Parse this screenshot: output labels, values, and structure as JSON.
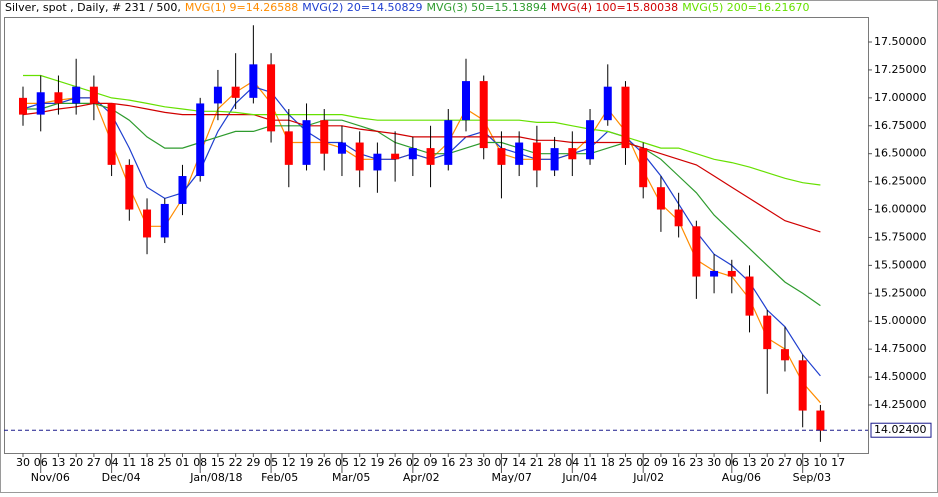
{
  "chart_data": {
    "type": "candlestick",
    "title": "Silver, spot , Daily, # 231 / 500,",
    "categories": [
      "30",
      "06",
      "13",
      "20",
      "27",
      "04",
      "11",
      "18",
      "25",
      "01",
      "08",
      "15",
      "22",
      "29",
      "05",
      "12",
      "19",
      "26",
      "05",
      "12",
      "19",
      "26",
      "02",
      "09",
      "16",
      "23",
      "30",
      "07",
      "14",
      "21",
      "28",
      "04",
      "11",
      "18",
      "25",
      "02",
      "09",
      "16",
      "23",
      "30",
      "06",
      "13",
      "20",
      "27",
      "03",
      "10",
      "17"
    ],
    "month_labels": [
      null,
      "Nov/06",
      null,
      null,
      null,
      "Dec/04",
      null,
      null,
      null,
      null,
      "Jan/08/18",
      null,
      null,
      null,
      "Feb/05",
      null,
      null,
      null,
      "Mar/05",
      null,
      null,
      null,
      "Apr/02",
      null,
      null,
      null,
      null,
      "May/07",
      null,
      null,
      null,
      "Jun/04",
      null,
      null,
      null,
      "Jul/02",
      null,
      null,
      null,
      null,
      "Aug/06",
      null,
      null,
      null,
      "Sep/03",
      null,
      null
    ],
    "open": [
      17.0,
      16.85,
      17.05,
      16.95,
      17.1,
      16.95,
      16.4,
      16.0,
      15.75,
      16.05,
      16.3,
      16.95,
      17.1,
      17.0,
      17.3,
      16.7,
      16.4,
      16.8,
      16.5,
      16.6,
      16.35,
      16.5,
      16.45,
      16.55,
      16.4,
      16.8,
      17.15,
      16.55,
      16.4,
      16.6,
      16.35,
      16.55,
      16.45,
      16.8,
      17.1,
      16.55,
      16.2,
      16.0,
      15.85,
      15.4,
      15.45,
      15.4,
      15.05,
      14.75,
      14.65,
      14.2,
      null
    ],
    "high": [
      17.1,
      17.2,
      17.2,
      17.35,
      17.2,
      16.95,
      16.45,
      16.1,
      16.1,
      16.4,
      17.0,
      17.25,
      17.4,
      17.65,
      17.4,
      16.9,
      16.95,
      16.9,
      16.75,
      16.7,
      16.6,
      16.7,
      16.65,
      16.75,
      16.9,
      17.35,
      17.2,
      16.7,
      16.7,
      16.75,
      16.65,
      16.7,
      16.9,
      17.3,
      17.15,
      16.6,
      16.3,
      16.15,
      15.9,
      15.6,
      15.55,
      15.5,
      15.1,
      14.95,
      14.7,
      14.25,
      null
    ],
    "low": [
      16.75,
      16.7,
      16.85,
      16.85,
      16.8,
      16.3,
      15.9,
      15.6,
      15.7,
      15.95,
      16.25,
      16.8,
      16.9,
      16.95,
      16.6,
      16.2,
      16.35,
      16.35,
      16.3,
      16.2,
      16.15,
      16.25,
      16.3,
      16.2,
      16.35,
      16.7,
      16.45,
      16.1,
      16.3,
      16.2,
      16.3,
      16.3,
      16.4,
      16.75,
      16.4,
      16.1,
      15.8,
      15.75,
      15.2,
      15.25,
      15.25,
      14.9,
      14.35,
      14.55,
      14.05,
      13.92,
      null
    ],
    "close": [
      16.85,
      17.05,
      16.95,
      17.1,
      16.95,
      16.4,
      16.0,
      15.75,
      16.05,
      16.3,
      16.95,
      17.1,
      17.0,
      17.3,
      16.7,
      16.4,
      16.8,
      16.5,
      16.6,
      16.35,
      16.5,
      16.45,
      16.55,
      16.4,
      16.8,
      17.15,
      16.55,
      16.4,
      16.6,
      16.35,
      16.55,
      16.45,
      16.8,
      17.1,
      16.55,
      16.2,
      16.0,
      15.85,
      15.4,
      15.45,
      15.4,
      15.05,
      14.75,
      14.65,
      14.2,
      14.02,
      null
    ],
    "up_color": "#0000ff",
    "down_color": "#ff0000",
    "series": [
      {
        "name": "MVG(1) 9=14.26588",
        "color": "#ff8c00",
        "values": [
          16.95,
          16.95,
          16.98,
          17.0,
          17.0,
          16.6,
          16.2,
          15.85,
          15.85,
          16.1,
          16.5,
          16.9,
          17.05,
          17.15,
          16.95,
          16.6,
          16.6,
          16.6,
          16.55,
          16.45,
          16.45,
          16.45,
          16.5,
          16.45,
          16.6,
          16.9,
          16.8,
          16.5,
          16.45,
          16.45,
          16.45,
          16.5,
          16.65,
          16.9,
          16.7,
          16.35,
          16.05,
          15.9,
          15.55,
          15.45,
          15.4,
          15.2,
          14.85,
          14.75,
          14.45,
          14.27,
          null
        ]
      },
      {
        "name": "MVG(2) 20=14.50829",
        "color": "#1f3fcf",
        "values": [
          16.9,
          16.95,
          16.95,
          17.0,
          17.0,
          16.85,
          16.55,
          16.2,
          16.1,
          16.15,
          16.35,
          16.7,
          16.95,
          17.1,
          17.05,
          16.85,
          16.7,
          16.6,
          16.6,
          16.5,
          16.45,
          16.45,
          16.5,
          16.45,
          16.5,
          16.65,
          16.7,
          16.55,
          16.5,
          16.45,
          16.45,
          16.5,
          16.55,
          16.7,
          16.65,
          16.5,
          16.3,
          16.05,
          15.8,
          15.6,
          15.5,
          15.35,
          15.1,
          14.95,
          14.7,
          14.51,
          null
        ]
      },
      {
        "name": "MVG(3) 50=15.13894",
        "color": "#2e9b2e",
        "values": [
          16.9,
          16.9,
          16.95,
          16.95,
          16.95,
          16.9,
          16.8,
          16.65,
          16.55,
          16.55,
          16.6,
          16.65,
          16.7,
          16.7,
          16.75,
          16.75,
          16.75,
          16.8,
          16.8,
          16.75,
          16.7,
          16.6,
          16.55,
          16.5,
          16.5,
          16.55,
          16.6,
          16.6,
          16.55,
          16.5,
          16.5,
          16.5,
          16.5,
          16.55,
          16.6,
          16.55,
          16.45,
          16.3,
          16.15,
          15.95,
          15.8,
          15.65,
          15.5,
          15.35,
          15.25,
          15.14,
          null
        ]
      },
      {
        "name": "MVG(4) 100=15.80038",
        "color": "#d00000",
        "values": [
          16.85,
          16.87,
          16.9,
          16.92,
          16.95,
          16.95,
          16.93,
          16.9,
          16.87,
          16.85,
          16.85,
          16.85,
          16.85,
          16.85,
          16.8,
          16.8,
          16.75,
          16.75,
          16.75,
          16.72,
          16.7,
          16.68,
          16.65,
          16.65,
          16.65,
          16.65,
          16.65,
          16.65,
          16.65,
          16.62,
          16.62,
          16.6,
          16.6,
          16.6,
          16.6,
          16.55,
          16.5,
          16.45,
          16.4,
          16.3,
          16.2,
          16.1,
          16.0,
          15.9,
          15.85,
          15.8,
          null
        ]
      },
      {
        "name": "MVG(5) 200=16.21670",
        "color": "#66e000",
        "values": [
          17.2,
          17.2,
          17.15,
          17.1,
          17.05,
          17.0,
          16.98,
          16.95,
          16.92,
          16.9,
          16.88,
          16.88,
          16.87,
          16.85,
          16.85,
          16.85,
          16.85,
          16.85,
          16.85,
          16.82,
          16.8,
          16.8,
          16.8,
          16.8,
          16.8,
          16.8,
          16.8,
          16.8,
          16.8,
          16.78,
          16.78,
          16.75,
          16.72,
          16.7,
          16.65,
          16.6,
          16.55,
          16.55,
          16.5,
          16.45,
          16.42,
          16.38,
          16.33,
          16.28,
          16.24,
          16.22,
          null
        ]
      }
    ],
    "last_value": {
      "value": 14.024,
      "label": "14.02400"
    },
    "ylim": [
      13.82,
      17.715
    ],
    "yticks": [
      {
        "value": 14.25,
        "label": "14.25000"
      },
      {
        "value": 14.5,
        "label": "14.50000"
      },
      {
        "value": 14.75,
        "label": "14.75000"
      },
      {
        "value": 15.0,
        "label": "15.00000"
      },
      {
        "value": 15.25,
        "label": "15.25000"
      },
      {
        "value": 15.5,
        "label": "15.50000"
      },
      {
        "value": 15.75,
        "label": "15.75000"
      },
      {
        "value": 16.0,
        "label": "16.00000"
      },
      {
        "value": 16.25,
        "label": "16.25000"
      },
      {
        "value": 16.5,
        "label": "16.50000"
      },
      {
        "value": 16.75,
        "label": "16.75000"
      },
      {
        "value": 17.0,
        "label": "17.00000"
      },
      {
        "value": 17.25,
        "label": "17.25000"
      },
      {
        "value": 17.5,
        "label": "17.50000"
      }
    ],
    "grid": false
  }
}
